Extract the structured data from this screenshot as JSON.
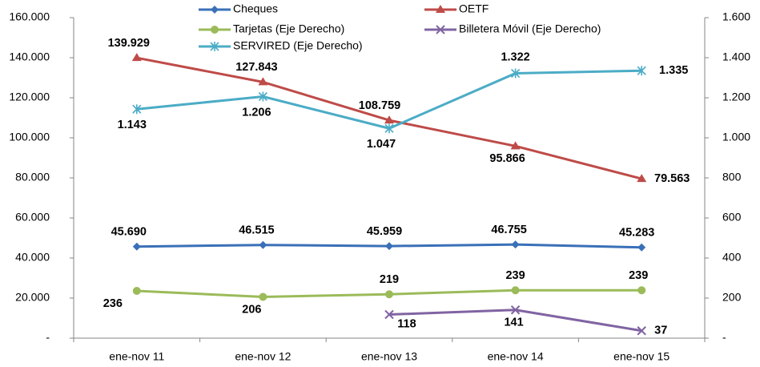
{
  "chart_data": {
    "type": "line",
    "categories": [
      "ene-nov 11",
      "ene-nov 12",
      "ene-nov 13",
      "ene-nov 14",
      "ene-nov 15"
    ],
    "ylim": [
      0,
      160000
    ],
    "yticks": [
      {
        "value": 0,
        "label": "-"
      },
      {
        "value": 20000,
        "label": "20.000"
      },
      {
        "value": 40000,
        "label": "40.000"
      },
      {
        "value": 60000,
        "label": "60.000"
      },
      {
        "value": 80000,
        "label": "80.000"
      },
      {
        "value": 100000,
        "label": "100.000"
      },
      {
        "value": 120000,
        "label": "120.000"
      },
      {
        "value": 140000,
        "label": "140.000"
      },
      {
        "value": 160000,
        "label": "160.000"
      }
    ],
    "y2lim": [
      0,
      1600
    ],
    "y2ticks": [
      {
        "value": 0,
        "label": "-"
      },
      200,
      400,
      600,
      800,
      {
        "value": 1000,
        "label": "1.000"
      },
      {
        "value": 1200,
        "label": "1.200"
      },
      {
        "value": 1400,
        "label": "1.400"
      },
      {
        "value": 1600,
        "label": "1.600"
      }
    ],
    "legend": "top",
    "series": [
      {
        "name": "Cheques",
        "color": "#3a70b8",
        "marker": "diamond",
        "values": [
          45690,
          46515,
          45959,
          46755,
          45283
        ],
        "value_labels": [
          "45.690",
          "46.515",
          "45.959",
          "46.755",
          "45.283"
        ]
      },
      {
        "name": "OETF",
        "color": "#be4b48",
        "marker": "triangle",
        "values": [
          139929,
          127843,
          108759,
          95866,
          79563
        ],
        "value_labels": [
          "139.929",
          "127.843",
          "108.759",
          "95.866",
          "79.563"
        ]
      },
      {
        "name": "Tarjetas (Eje Derecho)",
        "color": "#9bbb59",
        "marker": "circle",
        "axis": "y2",
        "values": [
          236,
          206,
          219,
          239,
          239
        ]
      },
      {
        "name": "Billetera Móvil (Eje Derecho)",
        "color": "#8064a2",
        "marker": "x",
        "axis": "y2",
        "values": [
          null,
          null,
          118,
          141,
          37
        ]
      },
      {
        "name": "SERVIRED (Eje Derecho)",
        "color": "#4bacc6",
        "marker": "star",
        "axis": "y2",
        "values": [
          1143,
          1206,
          1047,
          1322,
          1335
        ],
        "value_labels": [
          "1.143",
          "1.206",
          "1.047",
          "1.322",
          "1.335"
        ]
      }
    ]
  }
}
